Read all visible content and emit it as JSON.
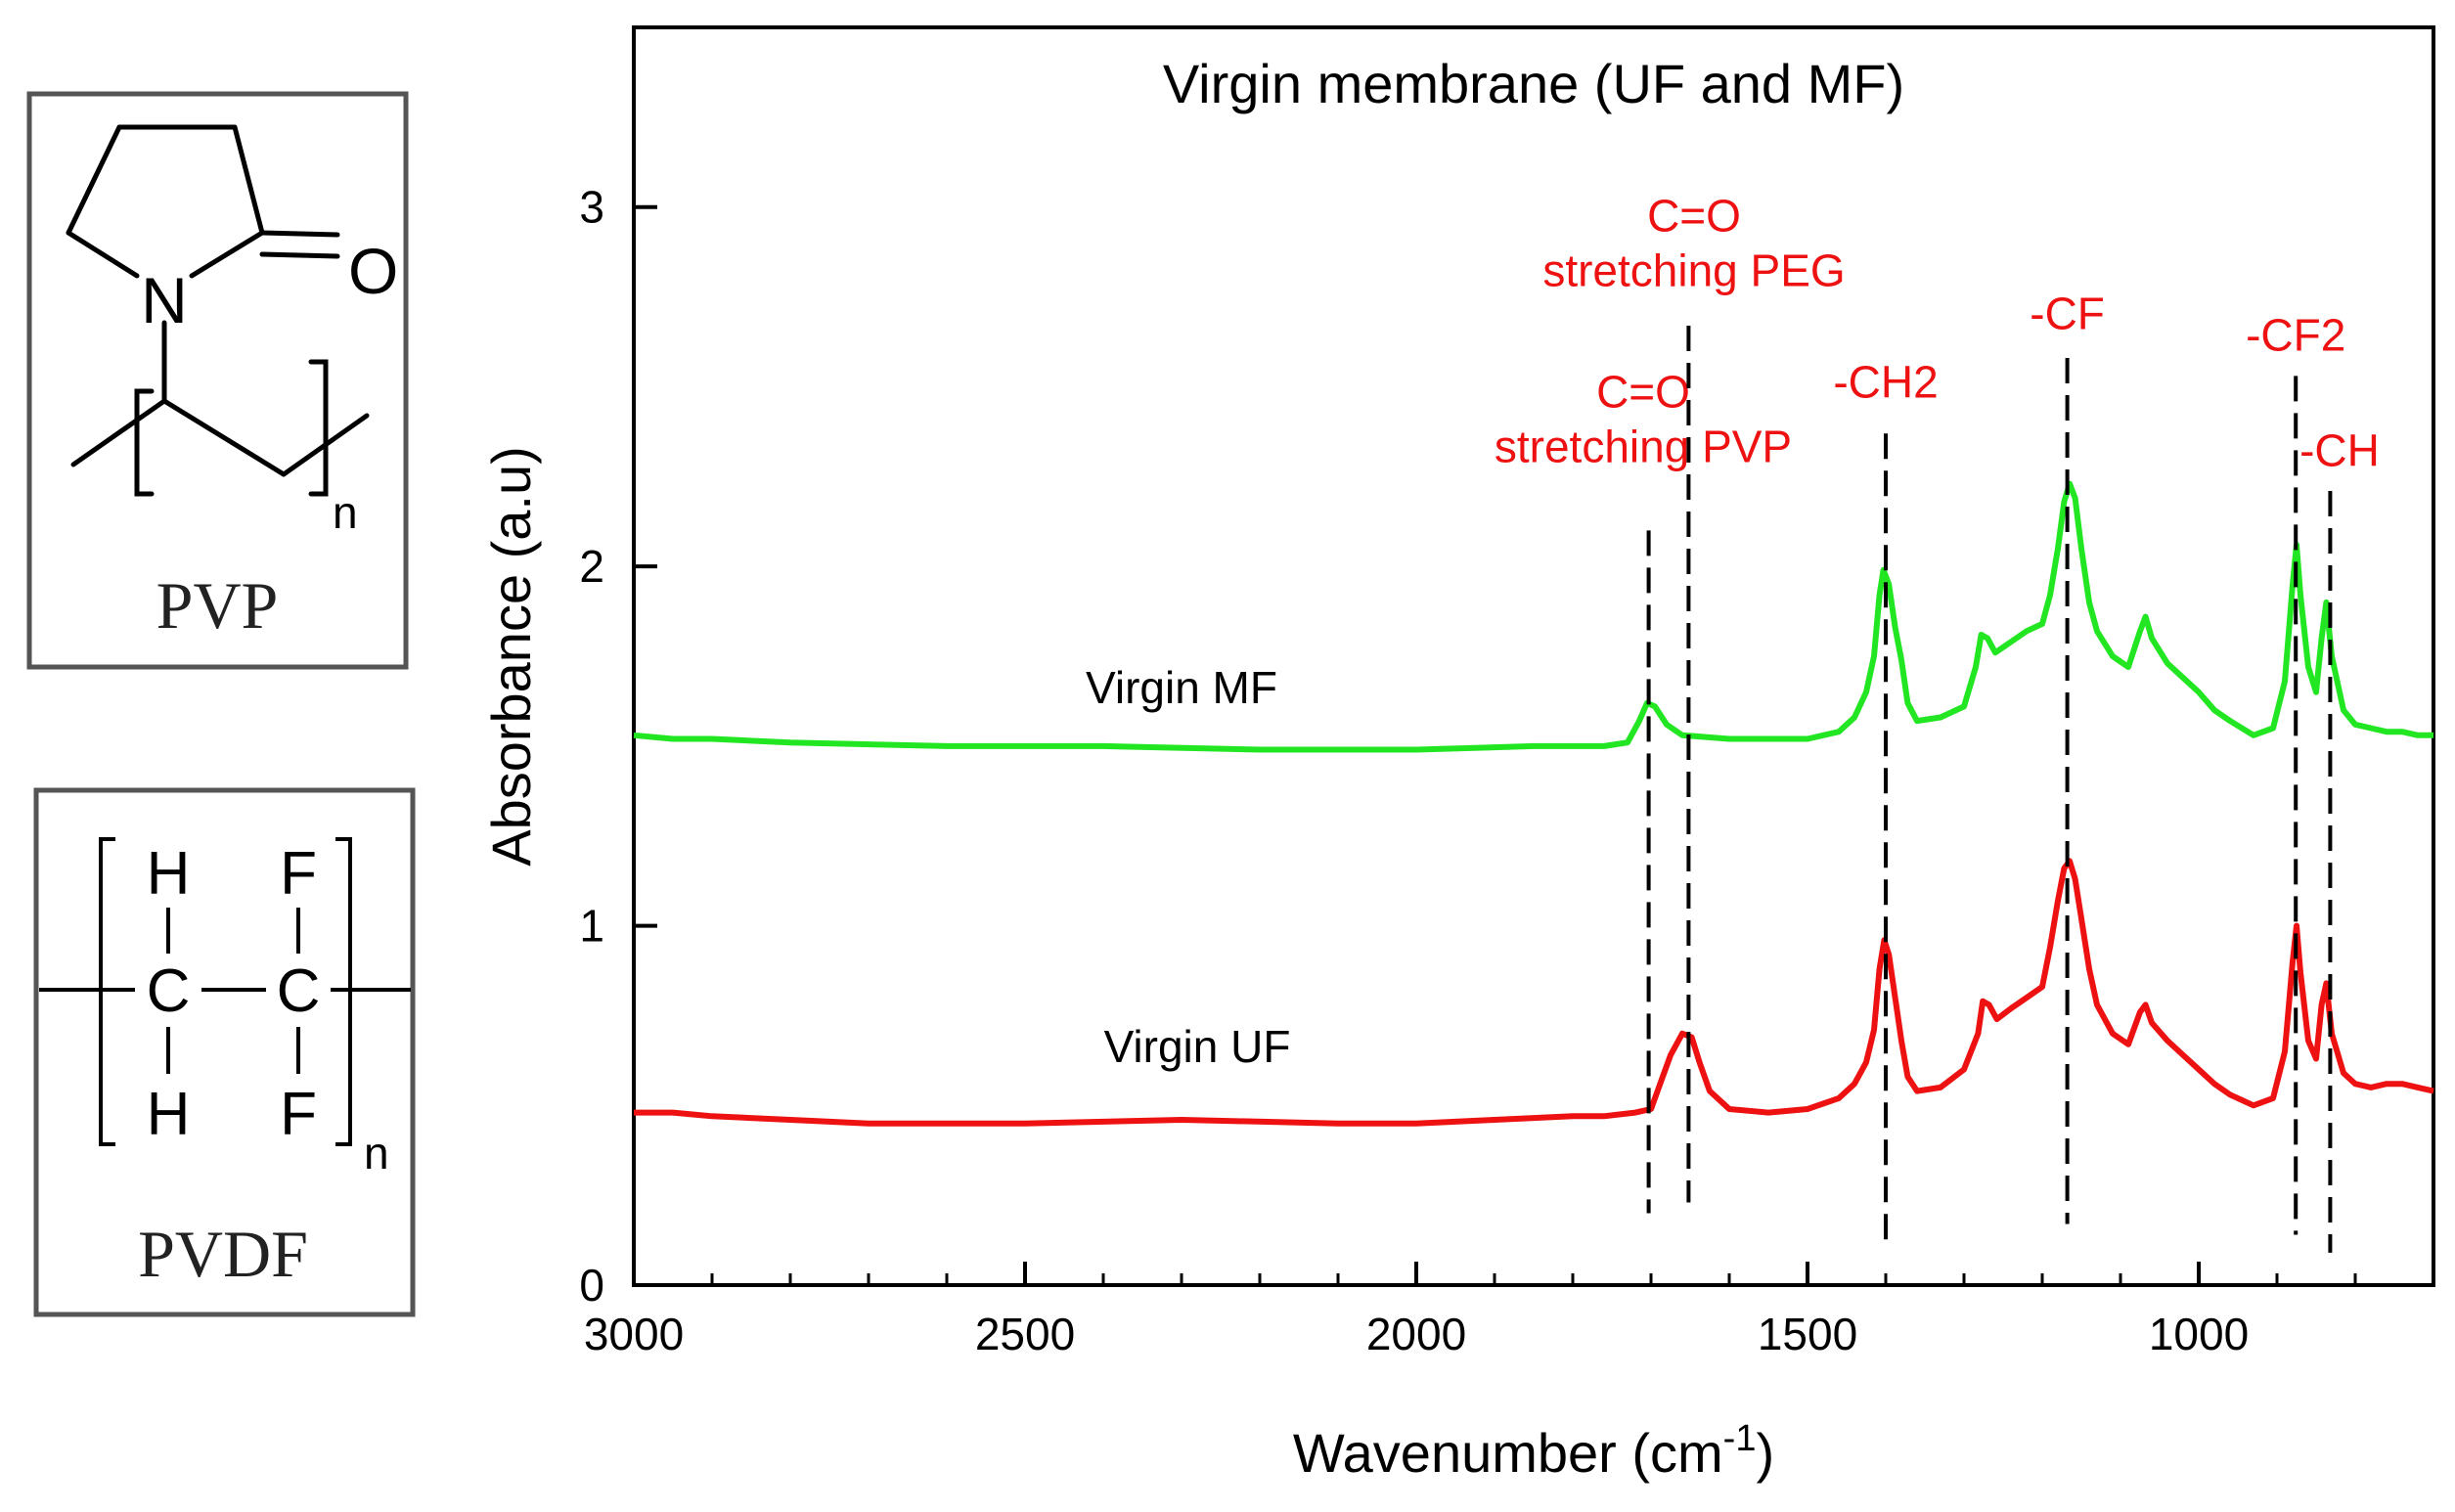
{
  "structures": {
    "pvp": {
      "caption": "PVP",
      "atom_nitrogen": "N",
      "atom_oxygen": "O",
      "subscript": "n"
    },
    "pvdf": {
      "caption": "PVDF",
      "atom_h_top": "H",
      "atom_f_top": "F",
      "atom_c_left": "C",
      "atom_c_right": "C",
      "atom_h_bottom": "H",
      "atom_f_bottom": "F",
      "subscript": "n"
    }
  },
  "chart_data": {
    "type": "line",
    "title": "Virgin membrane (UF and MF)",
    "xlabel_main": "Wavenumber (cm",
    "xlabel_sup": "-1",
    "xlabel_end": ")",
    "ylabel": "Absorbance (a.u)",
    "xlim": [
      3000,
      700
    ],
    "ylim": [
      0,
      3.5
    ],
    "x_ticks": [
      3000,
      2500,
      2000,
      1500,
      1000
    ],
    "x_tick_labels": [
      "3000",
      "2500",
      "2000",
      "1500",
      "1000"
    ],
    "y_ticks": [
      0,
      1,
      2,
      3
    ],
    "y_tick_labels": [
      "0",
      "1",
      "2",
      "3"
    ],
    "series": [
      {
        "name": "Virgin MF",
        "color": "#22e622",
        "points": [
          [
            3000,
            1.53
          ],
          [
            2950,
            1.52
          ],
          [
            2900,
            1.52
          ],
          [
            2800,
            1.51
          ],
          [
            2600,
            1.5
          ],
          [
            2400,
            1.5
          ],
          [
            2200,
            1.49
          ],
          [
            2000,
            1.49
          ],
          [
            1850,
            1.5
          ],
          [
            1760,
            1.5
          ],
          [
            1730,
            1.51
          ],
          [
            1715,
            1.57
          ],
          [
            1705,
            1.62
          ],
          [
            1695,
            1.61
          ],
          [
            1680,
            1.56
          ],
          [
            1660,
            1.53
          ],
          [
            1600,
            1.52
          ],
          [
            1500,
            1.52
          ],
          [
            1460,
            1.54
          ],
          [
            1440,
            1.58
          ],
          [
            1425,
            1.65
          ],
          [
            1415,
            1.75
          ],
          [
            1408,
            1.92
          ],
          [
            1403,
            1.99
          ],
          [
            1396,
            1.95
          ],
          [
            1388,
            1.83
          ],
          [
            1380,
            1.74
          ],
          [
            1372,
            1.62
          ],
          [
            1360,
            1.57
          ],
          [
            1330,
            1.58
          ],
          [
            1300,
            1.61
          ],
          [
            1285,
            1.72
          ],
          [
            1278,
            1.81
          ],
          [
            1270,
            1.8
          ],
          [
            1260,
            1.76
          ],
          [
            1240,
            1.79
          ],
          [
            1220,
            1.82
          ],
          [
            1200,
            1.84
          ],
          [
            1190,
            1.92
          ],
          [
            1180,
            2.05
          ],
          [
            1172,
            2.18
          ],
          [
            1165,
            2.23
          ],
          [
            1158,
            2.19
          ],
          [
            1150,
            2.05
          ],
          [
            1140,
            1.9
          ],
          [
            1130,
            1.82
          ],
          [
            1110,
            1.75
          ],
          [
            1090,
            1.72
          ],
          [
            1075,
            1.82
          ],
          [
            1068,
            1.86
          ],
          [
            1060,
            1.8
          ],
          [
            1040,
            1.73
          ],
          [
            1020,
            1.69
          ],
          [
            1000,
            1.65
          ],
          [
            980,
            1.6
          ],
          [
            960,
            1.57
          ],
          [
            930,
            1.53
          ],
          [
            905,
            1.55
          ],
          [
            890,
            1.68
          ],
          [
            880,
            1.95
          ],
          [
            875,
            2.06
          ],
          [
            870,
            1.92
          ],
          [
            860,
            1.72
          ],
          [
            850,
            1.65
          ],
          [
            843,
            1.8
          ],
          [
            837,
            1.9
          ],
          [
            830,
            1.75
          ],
          [
            815,
            1.6
          ],
          [
            800,
            1.56
          ],
          [
            780,
            1.55
          ],
          [
            760,
            1.54
          ],
          [
            740,
            1.54
          ],
          [
            720,
            1.53
          ],
          [
            700,
            1.53
          ]
        ]
      },
      {
        "name": "Virgin UF",
        "color": "#ee1111",
        "points": [
          [
            3000,
            0.48
          ],
          [
            2950,
            0.48
          ],
          [
            2900,
            0.47
          ],
          [
            2800,
            0.46
          ],
          [
            2700,
            0.45
          ],
          [
            2500,
            0.45
          ],
          [
            2300,
            0.46
          ],
          [
            2100,
            0.45
          ],
          [
            2000,
            0.45
          ],
          [
            1900,
            0.46
          ],
          [
            1800,
            0.47
          ],
          [
            1760,
            0.47
          ],
          [
            1720,
            0.48
          ],
          [
            1700,
            0.49
          ],
          [
            1690,
            0.55
          ],
          [
            1675,
            0.64
          ],
          [
            1660,
            0.7
          ],
          [
            1648,
            0.69
          ],
          [
            1638,
            0.62
          ],
          [
            1625,
            0.54
          ],
          [
            1600,
            0.49
          ],
          [
            1550,
            0.48
          ],
          [
            1500,
            0.49
          ],
          [
            1460,
            0.52
          ],
          [
            1440,
            0.56
          ],
          [
            1425,
            0.62
          ],
          [
            1415,
            0.71
          ],
          [
            1408,
            0.88
          ],
          [
            1402,
            0.96
          ],
          [
            1396,
            0.92
          ],
          [
            1388,
            0.8
          ],
          [
            1380,
            0.68
          ],
          [
            1372,
            0.58
          ],
          [
            1360,
            0.54
          ],
          [
            1330,
            0.55
          ],
          [
            1300,
            0.6
          ],
          [
            1282,
            0.7
          ],
          [
            1276,
            0.79
          ],
          [
            1268,
            0.78
          ],
          [
            1258,
            0.74
          ],
          [
            1240,
            0.77
          ],
          [
            1220,
            0.8
          ],
          [
            1200,
            0.83
          ],
          [
            1190,
            0.94
          ],
          [
            1180,
            1.07
          ],
          [
            1172,
            1.16
          ],
          [
            1165,
            1.18
          ],
          [
            1158,
            1.13
          ],
          [
            1150,
            1.02
          ],
          [
            1140,
            0.88
          ],
          [
            1130,
            0.78
          ],
          [
            1110,
            0.7
          ],
          [
            1090,
            0.67
          ],
          [
            1075,
            0.76
          ],
          [
            1068,
            0.78
          ],
          [
            1060,
            0.73
          ],
          [
            1040,
            0.68
          ],
          [
            1020,
            0.64
          ],
          [
            1000,
            0.6
          ],
          [
            980,
            0.56
          ],
          [
            960,
            0.53
          ],
          [
            930,
            0.5
          ],
          [
            905,
            0.52
          ],
          [
            890,
            0.65
          ],
          [
            880,
            0.9
          ],
          [
            875,
            1.0
          ],
          [
            870,
            0.87
          ],
          [
            860,
            0.68
          ],
          [
            850,
            0.63
          ],
          [
            843,
            0.78
          ],
          [
            837,
            0.84
          ],
          [
            830,
            0.7
          ],
          [
            815,
            0.59
          ],
          [
            800,
            0.56
          ],
          [
            780,
            0.55
          ],
          [
            760,
            0.56
          ],
          [
            740,
            0.56
          ],
          [
            720,
            0.55
          ],
          [
            700,
            0.54
          ]
        ]
      }
    ],
    "series_labels": [
      {
        "text": "Virgin MF",
        "x": 2300,
        "y": 1.62
      },
      {
        "text": "Virgin UF",
        "x": 2280,
        "y": 0.62
      }
    ],
    "annotations": [
      {
        "lines": [
          "C=O",
          "stretching PVP"
        ],
        "x_label": 1710,
        "y_label": 2.29,
        "x_line": 1703,
        "y_line_top": 2.1,
        "y_line_bottom": 0.2,
        "color": "#ee1111"
      },
      {
        "lines": [
          "C=O",
          "stretching PEG"
        ],
        "x_label": 1645,
        "y_label": 2.78,
        "x_line": 1652,
        "y_line_top": 2.67,
        "y_line_bottom": 0.23,
        "color": "#ee1111"
      },
      {
        "lines": [
          "-CH2"
        ],
        "x_label": 1400,
        "y_label": 2.47,
        "x_line": 1400,
        "y_line_top": 2.37,
        "y_line_bottom": 0.1,
        "color": "#ee1111"
      },
      {
        "lines": [
          "-CF"
        ],
        "x_label": 1168,
        "y_label": 2.66,
        "x_line": 1168,
        "y_line_top": 2.58,
        "y_line_bottom": 0.17,
        "color": "#ee1111"
      },
      {
        "lines": [
          "-CF2"
        ],
        "x_label": 876,
        "y_label": 2.6,
        "x_line": 876,
        "y_line_top": 2.53,
        "y_line_bottom": 0.14,
        "color": "#ee1111"
      },
      {
        "lines": [
          "-CH"
        ],
        "x_label": 820,
        "y_label": 2.28,
        "x_line": 832,
        "y_line_top": 2.21,
        "y_line_bottom": 0.09,
        "color": "#ee1111"
      }
    ],
    "grid": false,
    "legend": "none"
  }
}
